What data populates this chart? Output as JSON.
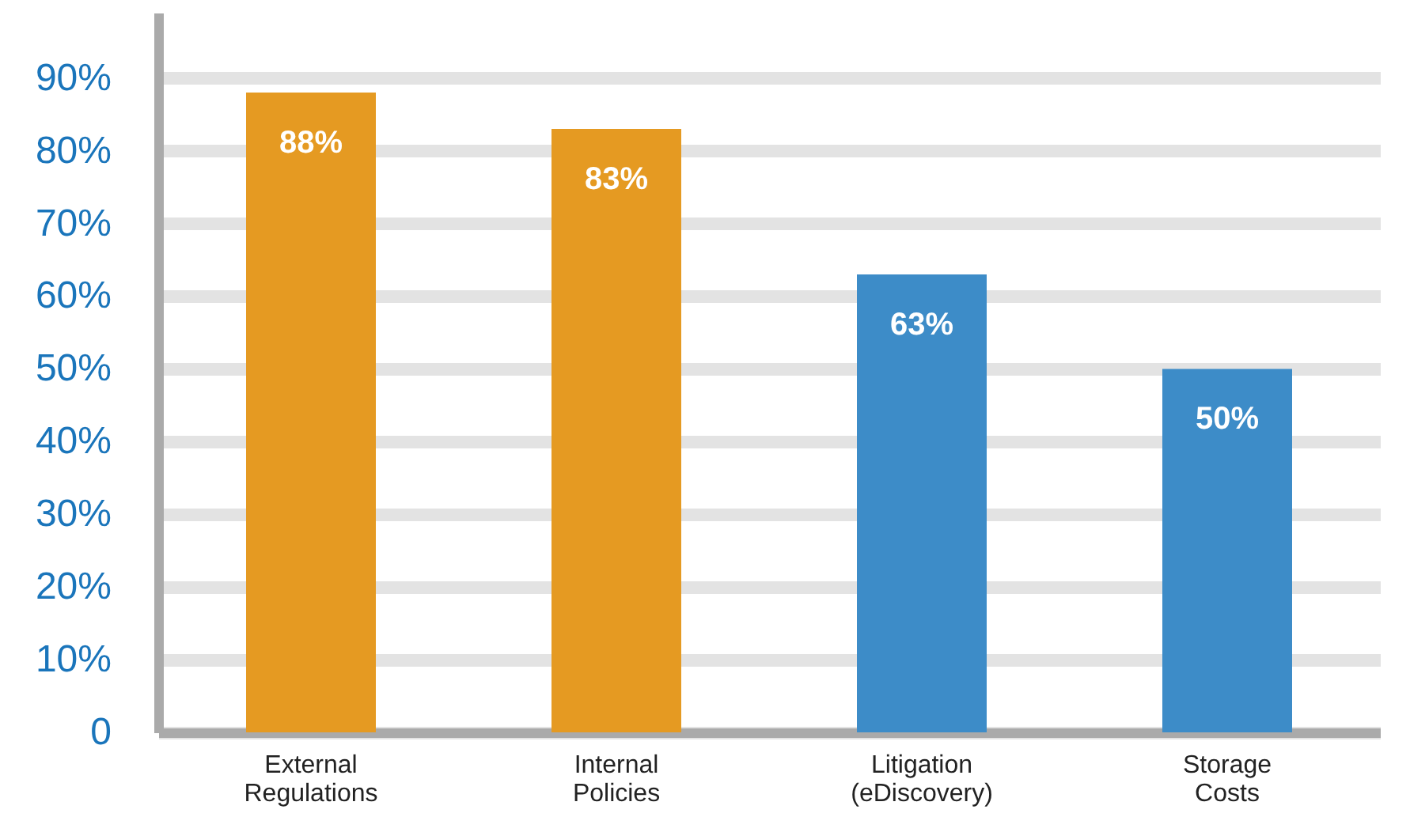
{
  "chart_data": {
    "type": "bar",
    "categories": [
      "External Regulations",
      "Internal Policies",
      "Litigation (eDiscovery)",
      "Storage Costs"
    ],
    "values": [
      88,
      83,
      63,
      50
    ],
    "value_labels": [
      "88%",
      "83%",
      "63%",
      "50%"
    ],
    "colors": [
      "#e59a22",
      "#e59a22",
      "#3d8cc8",
      "#3d8cc8"
    ],
    "ylim": [
      0,
      99
    ],
    "yticks": [
      {
        "value": 0,
        "label": "0"
      },
      {
        "value": 10,
        "label": "10%"
      },
      {
        "value": 20,
        "label": "20%"
      },
      {
        "value": 30,
        "label": "30%"
      },
      {
        "value": 40,
        "label": "40%"
      },
      {
        "value": 50,
        "label": "50%"
      },
      {
        "value": 60,
        "label": "60%"
      },
      {
        "value": 70,
        "label": "70%"
      },
      {
        "value": 80,
        "label": "80%"
      },
      {
        "value": 90,
        "label": "90%"
      }
    ],
    "grid": "y"
  }
}
